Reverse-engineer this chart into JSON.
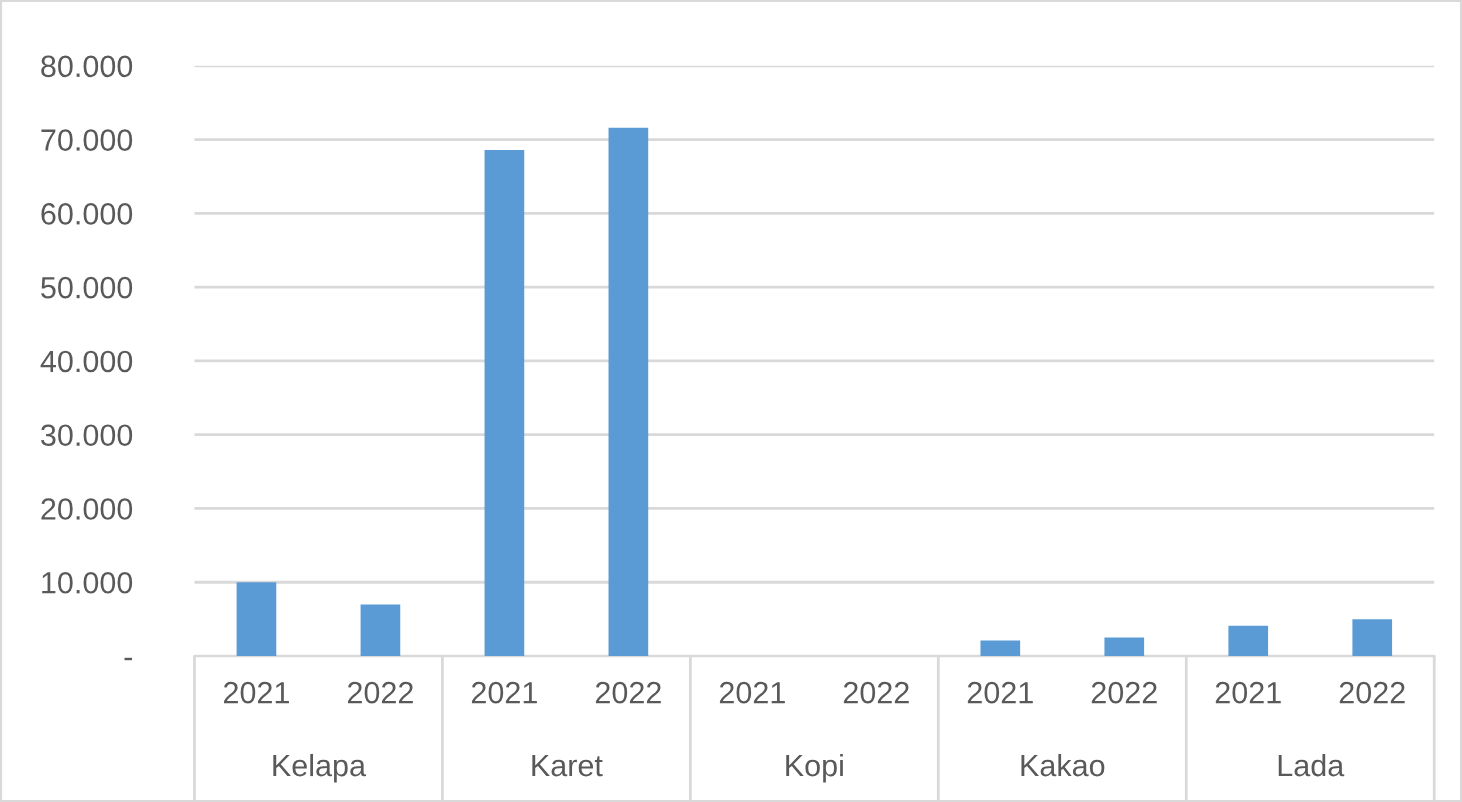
{
  "chart_data": {
    "type": "bar",
    "categories": [
      "2021",
      "2022",
      "2021",
      "2022",
      "2021",
      "2022",
      "2021",
      "2022",
      "2021",
      "2022"
    ],
    "annotations": [
      "Kelapa",
      "Karet",
      "Kopi",
      "Kakao",
      "Lada"
    ],
    "values": [
      10000,
      7000,
      68600,
      71600,
      0,
      0,
      2100,
      2500,
      4100,
      5000
    ],
    "color": "#5b9bd5",
    "ylim": [
      0,
      80000
    ],
    "yticks": [
      {
        "value": 0,
        "label": "-"
      },
      {
        "value": 10000,
        "label": "10.000"
      },
      {
        "value": 20000,
        "label": "20.000"
      },
      {
        "value": 30000,
        "label": "30.000"
      },
      {
        "value": 40000,
        "label": "40.000"
      },
      {
        "value": 50000,
        "label": "50.000"
      },
      {
        "value": 60000,
        "label": "60.000"
      },
      {
        "value": 70000,
        "label": "70.000"
      },
      {
        "value": 80000,
        "label": "80.000"
      }
    ],
    "grid": "y"
  }
}
